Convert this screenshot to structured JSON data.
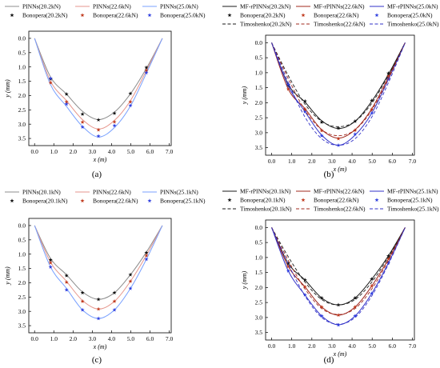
{
  "colors": {
    "black": "#1a1a1a",
    "dark_red": "#a0281e",
    "dark_blue": "#3232c8",
    "light_black": "#8c8c8c",
    "light_red": "#e6968c",
    "light_blue": "#78a0ff",
    "bonopera_low": "#111111",
    "bonopera_mid": "#c03a1e",
    "bonopera_high": "#3040e0"
  },
  "chart_data": [
    {
      "type": "line",
      "panel_label": "(a)",
      "xlabel": "x (m)",
      "ylabel": "y (mm)",
      "xlim": [
        -0.3,
        7.1
      ],
      "ylim": [
        3.75,
        -0.25
      ],
      "y_inverted": true,
      "xticks": [
        "0.0",
        "1.0",
        "2.0",
        "3.0",
        "4.0",
        "5.0",
        "6.0",
        "7.0"
      ],
      "yticks": [
        "0.0",
        "0.5",
        "1.0",
        "1.5",
        "2.0",
        "2.5",
        "3.0",
        "3.5"
      ],
      "legend_position": "top",
      "legend_columns": 3,
      "legend": [
        "PINNs(20.2kN)",
        "PINNs(22.6kN)",
        "PINNs(25.0kN)",
        "Bonopera(20.2kN)",
        "Bonopera(22.6kN)",
        "Bonopera(25.0kN)"
      ],
      "series": [
        {
          "name": "PINNs(20.2kN)",
          "kind": "line",
          "dash": "solid",
          "color": "light_black",
          "x": [
            0.0,
            0.83,
            1.66,
            2.49,
            3.32,
            4.15,
            4.98,
            5.81,
            6.64
          ],
          "y": [
            0.0,
            1.35,
            1.95,
            2.55,
            2.84,
            2.58,
            1.94,
            1.05,
            0.0
          ]
        },
        {
          "name": "PINNs(22.6kN)",
          "kind": "line",
          "dash": "solid",
          "color": "light_red",
          "x": [
            0.0,
            0.83,
            1.66,
            2.49,
            3.32,
            4.15,
            4.98,
            5.81,
            6.64
          ],
          "y": [
            0.0,
            1.5,
            2.18,
            2.84,
            3.17,
            2.87,
            2.18,
            1.13,
            0.0
          ]
        },
        {
          "name": "PINNs(25.0kN)",
          "kind": "line",
          "dash": "solid",
          "color": "light_blue",
          "x": [
            0.0,
            0.83,
            1.66,
            2.49,
            3.32,
            4.15,
            4.98,
            5.81,
            6.64
          ],
          "y": [
            0.0,
            1.62,
            2.38,
            3.08,
            3.45,
            3.12,
            2.37,
            1.22,
            0.0
          ]
        },
        {
          "name": "Bonopera(20.2kN)",
          "kind": "marker",
          "color": "bonopera_low",
          "x": [
            0.83,
            1.66,
            2.49,
            3.32,
            4.15,
            4.98,
            5.81
          ],
          "y": [
            1.42,
            1.95,
            2.65,
            2.85,
            2.62,
            1.93,
            1.02
          ]
        },
        {
          "name": "Bonopera(22.6kN)",
          "kind": "marker",
          "color": "bonopera_mid",
          "x": [
            0.83,
            1.66,
            2.49,
            3.32,
            4.15,
            4.98,
            5.81
          ],
          "y": [
            1.55,
            2.22,
            2.93,
            3.2,
            2.92,
            2.22,
            1.12
          ]
        },
        {
          "name": "Bonopera(25.0kN)",
          "kind": "marker",
          "color": "bonopera_high",
          "x": [
            0.83,
            1.66,
            2.49,
            3.32,
            4.15,
            4.98,
            5.81
          ],
          "y": [
            1.4,
            2.3,
            3.1,
            3.42,
            3.05,
            2.35,
            1.2
          ]
        }
      ]
    },
    {
      "type": "line",
      "panel_label": "(b)",
      "xlabel": "x (m)",
      "ylabel": "y (mm)",
      "xlim": [
        -0.3,
        7.1
      ],
      "ylim": [
        3.75,
        -0.25
      ],
      "y_inverted": true,
      "xticks": [
        "0.0",
        "1.0",
        "2.0",
        "3.0",
        "4.0",
        "5.0",
        "6.0",
        "7.0"
      ],
      "yticks": [
        "0.0",
        "0.5",
        "1.0",
        "1.5",
        "2.0",
        "2.5",
        "3.0",
        "3.5"
      ],
      "legend_position": "top",
      "legend_columns": 3,
      "legend": [
        "MF-rPINNs(20.2kN)",
        "MF-rPINNs(22.6kN)",
        "MF-rPINNs(25.0kN)",
        "Bonopera(20.2kN)",
        "Bonopera(22.6kN)",
        "Bonopera(25.0kN)",
        "Timoshenko(20.2kN)",
        "Timoshenko(22.6kN)",
        "Timoshenko(25.0kN)"
      ],
      "series": [
        {
          "name": "MF-rPINNs(20.2kN)",
          "kind": "line",
          "dash": "solid",
          "color": "black",
          "x": [
            0.0,
            0.83,
            1.66,
            2.49,
            3.32,
            4.15,
            4.98,
            5.81,
            6.64
          ],
          "y": [
            0.0,
            1.4,
            1.98,
            2.6,
            2.86,
            2.62,
            1.95,
            1.05,
            0.0
          ]
        },
        {
          "name": "MF-rPINNs(22.6kN)",
          "kind": "line",
          "dash": "solid",
          "color": "dark_red",
          "x": [
            0.0,
            0.83,
            1.66,
            2.49,
            3.32,
            4.15,
            4.98,
            5.81,
            6.64
          ],
          "y": [
            0.0,
            1.55,
            2.2,
            2.9,
            3.18,
            2.9,
            2.2,
            1.14,
            0.0
          ]
        },
        {
          "name": "MF-rPINNs(25.0kN)",
          "kind": "line",
          "dash": "solid",
          "color": "dark_blue",
          "x": [
            0.0,
            0.83,
            1.66,
            2.49,
            3.32,
            4.15,
            4.98,
            5.81,
            6.64
          ],
          "y": [
            0.0,
            1.45,
            2.3,
            3.08,
            3.42,
            3.08,
            2.35,
            1.22,
            0.0
          ]
        },
        {
          "name": "Bonopera(20.2kN)",
          "kind": "marker",
          "color": "bonopera_low",
          "x": [
            0.83,
            1.66,
            2.49,
            3.32,
            4.15,
            4.98,
            5.81
          ],
          "y": [
            1.42,
            1.95,
            2.65,
            2.85,
            2.62,
            1.93,
            1.02
          ]
        },
        {
          "name": "Bonopera(22.6kN)",
          "kind": "marker",
          "color": "bonopera_mid",
          "x": [
            0.83,
            1.66,
            2.49,
            3.32,
            4.15,
            4.98,
            5.81
          ],
          "y": [
            1.55,
            2.22,
            2.93,
            3.2,
            2.92,
            2.22,
            1.12
          ]
        },
        {
          "name": "Bonopera(25.0kN)",
          "kind": "marker",
          "color": "bonopera_high",
          "x": [
            0.83,
            1.66,
            2.49,
            3.32,
            4.15,
            4.98,
            5.81
          ],
          "y": [
            1.4,
            2.3,
            3.1,
            3.42,
            3.05,
            2.35,
            1.2
          ]
        },
        {
          "name": "Timoshenko(20.2kN)",
          "kind": "line",
          "dash": "dashed",
          "color": "black",
          "x": [
            0.0,
            0.83,
            1.66,
            2.49,
            3.32,
            4.15,
            4.98,
            5.81,
            6.64
          ],
          "y": [
            0.0,
            1.1,
            2.05,
            2.62,
            2.8,
            2.62,
            2.02,
            1.08,
            0.0
          ]
        },
        {
          "name": "Timoshenko(22.6kN)",
          "kind": "line",
          "dash": "dashed",
          "color": "dark_red",
          "x": [
            0.0,
            0.83,
            1.66,
            2.49,
            3.32,
            4.15,
            4.98,
            5.81,
            6.64
          ],
          "y": [
            0.0,
            1.2,
            2.25,
            2.9,
            3.1,
            2.9,
            2.25,
            1.2,
            0.0
          ]
        },
        {
          "name": "Timoshenko(25.0kN)",
          "kind": "line",
          "dash": "dashed",
          "color": "dark_blue",
          "x": [
            0.0,
            0.83,
            1.66,
            2.49,
            3.32,
            4.15,
            4.98,
            5.81,
            6.64
          ],
          "y": [
            0.0,
            1.33,
            2.48,
            3.2,
            3.42,
            3.2,
            2.48,
            1.33,
            0.0
          ]
        }
      ]
    },
    {
      "type": "line",
      "panel_label": "(c)",
      "xlabel": "x (m)",
      "ylabel": "y (mm)",
      "xlim": [
        -0.3,
        7.1
      ],
      "ylim": [
        3.75,
        -0.25
      ],
      "y_inverted": true,
      "xticks": [
        "0.0",
        "1.0",
        "2.0",
        "3.0",
        "4.0",
        "5.0",
        "6.0",
        "7.0"
      ],
      "yticks": [
        "0.0",
        "0.5",
        "1.0",
        "1.5",
        "2.0",
        "2.5",
        "3.0",
        "3.5"
      ],
      "legend_position": "top",
      "legend_columns": 3,
      "legend": [
        "PINNs(20.1kN)",
        "PINNs(22.6kN)",
        "PINNs(25.1kN)",
        "Bonopera(20.1kN)",
        "Bonopera(22.6kN)",
        "Bonopera(25.1kN)"
      ],
      "series": [
        {
          "name": "PINNs(20.1kN)",
          "kind": "line",
          "dash": "solid",
          "color": "light_black",
          "x": [
            0.0,
            0.83,
            1.66,
            2.49,
            3.32,
            4.15,
            4.98,
            5.81,
            6.64
          ],
          "y": [
            0.0,
            1.15,
            1.72,
            2.32,
            2.58,
            2.35,
            1.72,
            0.93,
            0.0
          ]
        },
        {
          "name": "PINNs(22.6kN)",
          "kind": "line",
          "dash": "solid",
          "color": "light_red",
          "x": [
            0.0,
            0.83,
            1.66,
            2.49,
            3.32,
            4.15,
            4.98,
            5.81,
            6.64
          ],
          "y": [
            0.0,
            1.28,
            1.95,
            2.62,
            2.92,
            2.65,
            1.95,
            1.04,
            0.0
          ]
        },
        {
          "name": "PINNs(25.1kN)",
          "kind": "line",
          "dash": "solid",
          "color": "light_blue",
          "x": [
            0.0,
            0.83,
            1.66,
            2.49,
            3.32,
            4.15,
            4.98,
            5.81,
            6.64
          ],
          "y": [
            0.0,
            1.45,
            2.2,
            2.95,
            3.25,
            2.95,
            2.2,
            1.18,
            0.0
          ]
        },
        {
          "name": "Bonopera(20.1kN)",
          "kind": "marker",
          "color": "bonopera_low",
          "x": [
            0.83,
            1.66,
            2.49,
            3.32,
            4.15,
            4.98,
            5.81
          ],
          "y": [
            1.2,
            1.75,
            2.35,
            2.58,
            2.35,
            1.72,
            0.95
          ]
        },
        {
          "name": "Bonopera(22.6kN)",
          "kind": "marker",
          "color": "bonopera_mid",
          "x": [
            0.83,
            1.66,
            2.49,
            3.32,
            4.15,
            4.98,
            5.81
          ],
          "y": [
            1.3,
            1.98,
            2.65,
            2.92,
            2.65,
            1.95,
            1.05
          ]
        },
        {
          "name": "Bonopera(25.1kN)",
          "kind": "marker",
          "color": "bonopera_high",
          "x": [
            0.83,
            1.66,
            2.49,
            3.32,
            4.15,
            4.98,
            5.81
          ],
          "y": [
            1.45,
            2.25,
            2.95,
            3.25,
            2.95,
            2.2,
            1.18
          ]
        }
      ]
    },
    {
      "type": "line",
      "panel_label": "(d)",
      "xlabel": "x (m)",
      "ylabel": "y (mm)",
      "xlim": [
        -0.3,
        7.1
      ],
      "ylim": [
        3.75,
        -0.25
      ],
      "y_inverted": true,
      "xticks": [
        "0.0",
        "1.0",
        "2.0",
        "3.0",
        "4.0",
        "5.0",
        "6.0",
        "7.0"
      ],
      "yticks": [
        "0.0",
        "0.5",
        "1.0",
        "1.5",
        "2.0",
        "2.5",
        "3.0",
        "3.5"
      ],
      "legend_position": "top",
      "legend_columns": 3,
      "legend": [
        "MF-rPINNs(20.1kN)",
        "MF-rPINNs(22.6kN)",
        "MF-rPINNs(25.1kN)",
        "Bonopera(20.1kN)",
        "Bonopera(22.6kN)",
        "Bonopera(25.1kN)",
        "Timoshenko(20.1kN)",
        "Timoshenko(22.6kN)",
        "Timoshenko(25.1kN)"
      ],
      "series": [
        {
          "name": "MF-rPINNs(20.1kN)",
          "kind": "line",
          "dash": "solid",
          "color": "black",
          "x": [
            0.0,
            0.83,
            1.66,
            2.49,
            3.32,
            4.15,
            4.98,
            5.81,
            6.64
          ],
          "y": [
            0.0,
            1.2,
            1.75,
            2.35,
            2.58,
            2.35,
            1.72,
            0.94,
            0.0
          ]
        },
        {
          "name": "MF-rPINNs(22.6kN)",
          "kind": "line",
          "dash": "solid",
          "color": "dark_red",
          "x": [
            0.0,
            0.83,
            1.66,
            2.49,
            3.32,
            4.15,
            4.98,
            5.81,
            6.64
          ],
          "y": [
            0.0,
            1.3,
            1.98,
            2.65,
            2.92,
            2.65,
            1.95,
            1.05,
            0.0
          ]
        },
        {
          "name": "MF-rPINNs(25.1kN)",
          "kind": "line",
          "dash": "solid",
          "color": "dark_blue",
          "x": [
            0.0,
            0.83,
            1.66,
            2.49,
            3.32,
            4.15,
            4.98,
            5.81,
            6.64
          ],
          "y": [
            0.0,
            1.45,
            2.25,
            2.95,
            3.24,
            2.95,
            2.2,
            1.18,
            0.0
          ]
        },
        {
          "name": "Bonopera(20.1kN)",
          "kind": "marker",
          "color": "bonopera_low",
          "x": [
            0.83,
            1.66,
            2.49,
            3.32,
            4.15,
            4.98,
            5.81
          ],
          "y": [
            1.2,
            1.75,
            2.35,
            2.58,
            2.35,
            1.72,
            0.95
          ]
        },
        {
          "name": "Bonopera(22.6kN)",
          "kind": "marker",
          "color": "bonopera_mid",
          "x": [
            0.83,
            1.66,
            2.49,
            3.32,
            4.15,
            4.98,
            5.81
          ],
          "y": [
            1.3,
            1.98,
            2.65,
            2.92,
            2.65,
            1.95,
            1.05
          ]
        },
        {
          "name": "Bonopera(25.1kN)",
          "kind": "marker",
          "color": "bonopera_high",
          "x": [
            0.83,
            1.66,
            2.49,
            3.32,
            4.15,
            4.98,
            5.81
          ],
          "y": [
            1.45,
            2.25,
            2.95,
            3.25,
            2.95,
            2.2,
            1.18
          ]
        },
        {
          "name": "Timoshenko(20.1kN)",
          "kind": "line",
          "dash": "dashed",
          "color": "black",
          "x": [
            0.0,
            0.83,
            1.66,
            2.49,
            3.32,
            4.15,
            4.98,
            5.81,
            6.64
          ],
          "y": [
            0.0,
            0.98,
            1.82,
            2.4,
            2.58,
            2.4,
            1.82,
            0.98,
            0.0
          ]
        },
        {
          "name": "Timoshenko(22.6kN)",
          "kind": "line",
          "dash": "dashed",
          "color": "dark_red",
          "x": [
            0.0,
            0.83,
            1.66,
            2.49,
            3.32,
            4.15,
            4.98,
            5.81,
            6.64
          ],
          "y": [
            0.0,
            1.1,
            2.05,
            2.7,
            2.9,
            2.7,
            2.05,
            1.1,
            0.0
          ]
        },
        {
          "name": "Timoshenko(25.1kN)",
          "kind": "line",
          "dash": "dashed",
          "color": "dark_blue",
          "x": [
            0.0,
            0.83,
            1.66,
            2.49,
            3.32,
            4.15,
            4.98,
            5.81,
            6.64
          ],
          "y": [
            0.0,
            1.22,
            2.28,
            3.0,
            3.22,
            3.0,
            2.28,
            1.22,
            0.0
          ]
        }
      ]
    }
  ]
}
